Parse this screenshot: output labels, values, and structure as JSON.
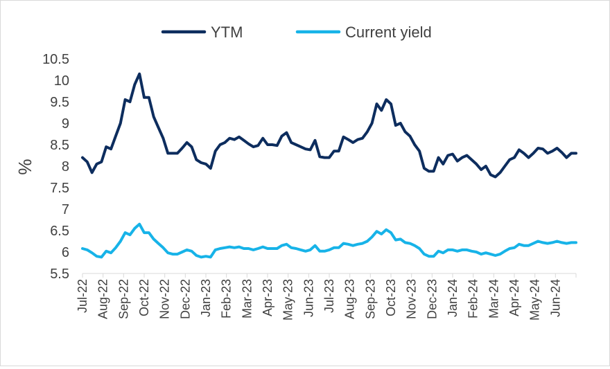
{
  "chart_data": {
    "type": "line",
    "title": "",
    "xlabel": "",
    "ylabel": "%",
    "ylim": [
      5.5,
      10.5
    ],
    "yticks": [
      "10.5",
      "10",
      "9.5",
      "9",
      "8.5",
      "8",
      "7.5",
      "7",
      "6.5",
      "6",
      "5.5"
    ],
    "grid": false,
    "legend_position": "top",
    "x_tick_labels": [
      "Jul-22",
      "Aug-22",
      "Sep-22",
      "Oct-22",
      "Nov-22",
      "Dec-22",
      "Jan-23",
      "Feb-23",
      "Mar-23",
      "Apr-23",
      "May-23",
      "Jun-23",
      "Jul-23",
      "Aug-23",
      "Sep-23",
      "Oct-23",
      "Nov-23",
      "Dec-23",
      "Jan-24",
      "Feb-24",
      "Mar-24",
      "Apr-24",
      "May-24",
      "Jun-24"
    ],
    "x_count": 105,
    "series": [
      {
        "name": "YTM",
        "color": "#0d2d5e",
        "values": [
          8.2,
          8.1,
          7.85,
          8.05,
          8.1,
          8.45,
          8.4,
          8.7,
          9.0,
          9.55,
          9.5,
          9.9,
          10.15,
          9.6,
          9.6,
          9.15,
          8.9,
          8.65,
          8.3,
          8.3,
          8.3,
          8.42,
          8.55,
          8.45,
          8.15,
          8.08,
          8.05,
          7.95,
          8.35,
          8.5,
          8.55,
          8.65,
          8.62,
          8.68,
          8.6,
          8.52,
          8.45,
          8.48,
          8.65,
          8.5,
          8.5,
          8.48,
          8.7,
          8.78,
          8.55,
          8.5,
          8.45,
          8.4,
          8.38,
          8.6,
          8.22,
          8.2,
          8.2,
          8.35,
          8.35,
          8.68,
          8.62,
          8.55,
          8.62,
          8.65,
          8.8,
          9.0,
          9.45,
          9.3,
          9.55,
          9.45,
          8.95,
          9.0,
          8.8,
          8.7,
          8.5,
          8.35,
          7.95,
          7.88,
          7.88,
          8.2,
          8.05,
          8.25,
          8.28,
          8.12,
          8.2,
          8.25,
          8.15,
          8.05,
          7.92,
          8.0,
          7.8,
          7.75,
          7.85,
          8.0,
          8.15,
          8.2,
          8.38,
          8.3,
          8.2,
          8.3,
          8.42,
          8.4,
          8.3,
          8.35,
          8.42,
          8.32,
          8.2,
          8.3,
          8.3
        ]
      },
      {
        "name": "Current yield",
        "color": "#17b3e8",
        "values": [
          6.08,
          6.05,
          5.98,
          5.9,
          5.88,
          6.02,
          5.98,
          6.1,
          6.25,
          6.45,
          6.4,
          6.55,
          6.65,
          6.45,
          6.45,
          6.3,
          6.2,
          6.1,
          5.98,
          5.95,
          5.95,
          6.0,
          6.05,
          6.02,
          5.92,
          5.88,
          5.9,
          5.88,
          6.05,
          6.08,
          6.1,
          6.12,
          6.1,
          6.12,
          6.08,
          6.08,
          6.05,
          6.08,
          6.12,
          6.08,
          6.08,
          6.08,
          6.15,
          6.18,
          6.1,
          6.08,
          6.05,
          6.02,
          6.05,
          6.15,
          6.02,
          6.02,
          6.05,
          6.1,
          6.1,
          6.2,
          6.18,
          6.15,
          6.18,
          6.2,
          6.25,
          6.35,
          6.48,
          6.42,
          6.52,
          6.45,
          6.28,
          6.3,
          6.22,
          6.2,
          6.15,
          6.08,
          5.95,
          5.9,
          5.9,
          6.02,
          5.98,
          6.05,
          6.05,
          6.02,
          6.05,
          6.05,
          6.02,
          6.0,
          5.95,
          5.98,
          5.95,
          5.92,
          5.95,
          6.02,
          6.08,
          6.1,
          6.18,
          6.15,
          6.15,
          6.2,
          6.25,
          6.22,
          6.2,
          6.22,
          6.25,
          6.22,
          6.2,
          6.22,
          6.22
        ]
      }
    ]
  }
}
